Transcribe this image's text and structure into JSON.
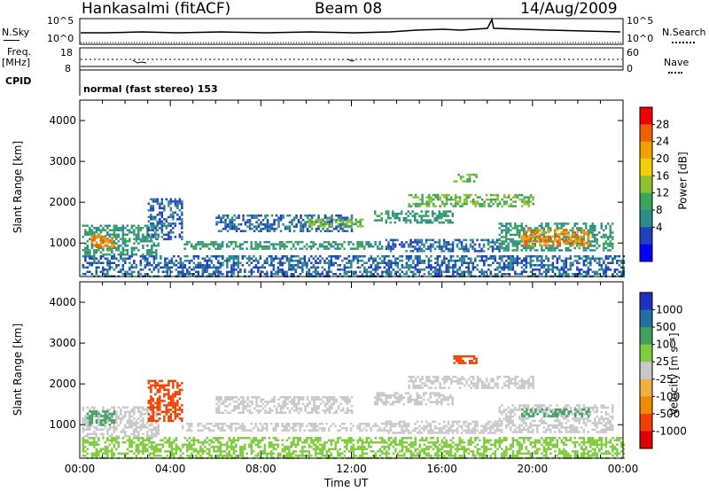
{
  "header": {
    "station": "Hankasalmi (fitACF)",
    "beam": "Beam 08",
    "date": "14/Aug/2009"
  },
  "top_panels": {
    "nsky_label": "N.Sky",
    "nsearch_label": "N.Search",
    "nsky_ticks": [
      "10^5",
      "10^0"
    ],
    "nsearch_ticks": [
      "10^5",
      "10^0"
    ],
    "freq_label": "Freq.",
    "freq_unit": "[MHz]",
    "freq_ticks": [
      "18",
      "8"
    ],
    "nave_label": "Nave",
    "nave_ticks": [
      "60",
      "0"
    ],
    "cpid_label": "CPID",
    "cpid_value": "normal (fast stereo) 153"
  },
  "chart_data": [
    {
      "type": "heatmap",
      "title": "",
      "xlabel": "Time UT",
      "ylabel": "Slant Range [km]",
      "x_ticks": [
        "00:00",
        "04:00",
        "08:00",
        "12:00",
        "16:00",
        "20:00",
        "00:00"
      ],
      "xlim_hours": [
        0,
        24
      ],
      "ylim": [
        180,
        4500
      ],
      "y_ticks": [
        1000,
        2000,
        3000,
        4000
      ],
      "colorbar": {
        "label": "Power [dB]",
        "ticks": [
          28,
          24,
          20,
          16,
          12,
          8,
          4
        ]
      },
      "regions": [
        {
          "t0": 0.1,
          "t1": 24,
          "r0": 200,
          "r1": 700,
          "level": 8
        },
        {
          "t0": 0.1,
          "t1": 3.5,
          "r0": 700,
          "r1": 1450,
          "level": 12
        },
        {
          "t0": 0.5,
          "t1": 1.5,
          "r0": 900,
          "r1": 1200,
          "level": 28
        },
        {
          "t0": 3.0,
          "t1": 4.5,
          "r0": 1100,
          "r1": 2100,
          "level": 8
        },
        {
          "t0": 4.5,
          "t1": 13.5,
          "r0": 850,
          "r1": 1050,
          "level": 12
        },
        {
          "t0": 6.0,
          "t1": 12.0,
          "r0": 1300,
          "r1": 1700,
          "level": 8
        },
        {
          "t0": 10.0,
          "t1": 12.5,
          "r0": 1400,
          "r1": 1600,
          "level": 16
        },
        {
          "t0": 13.0,
          "t1": 16.5,
          "r0": 1500,
          "r1": 1800,
          "level": 12
        },
        {
          "t0": 14.5,
          "t1": 20.0,
          "r0": 1900,
          "r1": 2200,
          "level": 16
        },
        {
          "t0": 16.5,
          "t1": 17.5,
          "r0": 2500,
          "r1": 2700,
          "level": 16
        },
        {
          "t0": 13.5,
          "t1": 18.5,
          "r0": 800,
          "r1": 1100,
          "level": 8
        },
        {
          "t0": 18.5,
          "t1": 23.5,
          "r0": 800,
          "r1": 1500,
          "level": 12
        },
        {
          "t0": 19.5,
          "t1": 22.5,
          "r0": 950,
          "r1": 1350,
          "level": 28
        }
      ]
    },
    {
      "type": "heatmap",
      "title": "",
      "xlabel": "Time UT",
      "ylabel": "Slant Range [km]",
      "x_ticks": [
        "00:00",
        "04:00",
        "08:00",
        "12:00",
        "16:00",
        "20:00",
        "00:00"
      ],
      "xlim_hours": [
        0,
        24
      ],
      "ylim": [
        180,
        4500
      ],
      "y_ticks": [
        1000,
        2000,
        3000,
        4000
      ],
      "colorbar": {
        "label": "Velocity [m s⁻¹]",
        "ticks": [
          "1000",
          "500",
          "100",
          "25",
          "-25",
          "-100",
          "-500",
          "-1000"
        ]
      },
      "regions": [
        {
          "t0": 0.1,
          "t1": 24,
          "r0": 200,
          "r1": 700,
          "level": 50
        },
        {
          "t0": 0.1,
          "t1": 3.5,
          "r0": 700,
          "r1": 1450,
          "level": 0
        },
        {
          "t0": 0.3,
          "t1": 1.5,
          "r0": 1000,
          "r1": 1350,
          "level": 150
        },
        {
          "t0": 3.0,
          "t1": 4.5,
          "r0": 1100,
          "r1": 2100,
          "level": -150
        },
        {
          "t0": 4.5,
          "t1": 13.5,
          "r0": 850,
          "r1": 1050,
          "level": 0
        },
        {
          "t0": 6.0,
          "t1": 12.0,
          "r0": 1300,
          "r1": 1700,
          "level": 0
        },
        {
          "t0": 13.0,
          "t1": 16.5,
          "r0": 1500,
          "r1": 1800,
          "level": 0
        },
        {
          "t0": 14.5,
          "t1": 20.0,
          "r0": 1900,
          "r1": 2200,
          "level": 0
        },
        {
          "t0": 16.5,
          "t1": 17.5,
          "r0": 2500,
          "r1": 2700,
          "level": -150
        },
        {
          "t0": 13.5,
          "t1": 18.5,
          "r0": 800,
          "r1": 1100,
          "level": 0
        },
        {
          "t0": 18.5,
          "t1": 23.5,
          "r0": 800,
          "r1": 1500,
          "level": 0
        },
        {
          "t0": 19.5,
          "t1": 22.5,
          "r0": 1200,
          "r1": 1400,
          "level": 400
        }
      ]
    }
  ]
}
